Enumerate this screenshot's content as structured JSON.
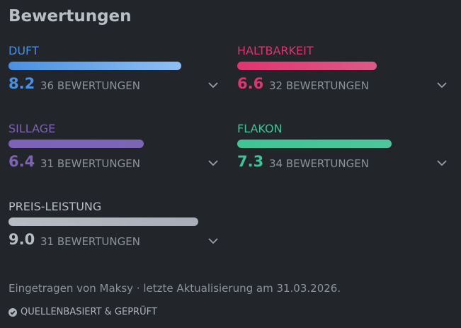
{
  "header": {
    "title": "Bewertungen"
  },
  "ratings": [
    {
      "label": "DUFT",
      "score": 8.2,
      "count": "36 BEWERTUNGEN",
      "color": "#4a90e2",
      "bar_color": "#8fbff3"
    },
    {
      "label": "HALTBARKEIT",
      "score": 6.6,
      "count": "32 BEWERTUNGEN",
      "color": "#e0346f",
      "bar_color": "#de5a88"
    },
    {
      "label": "SILLAGE",
      "score": 6.4,
      "count": "31 BEWERTUNGEN",
      "color": "#7d62b8",
      "bar_color": "#7b66b4"
    },
    {
      "label": "FLAKON",
      "score": 7.3,
      "count": "34 BEWERTUNGEN",
      "color": "#3fc496",
      "bar_color": "#4cc79b"
    },
    {
      "label": "PREIS-LEISTUNG",
      "score": 9,
      "score_label": "9.0",
      "count": "31 BEWERTUNGEN",
      "color": "#b8bcc4",
      "bar_color": "#a9adb8"
    }
  ],
  "footer": {
    "note": "Eingetragen von Maksy · letzte Aktualisierung am 31.03.2026.",
    "badge": "QUELLENBASIERT & GEPRÜFT"
  }
}
